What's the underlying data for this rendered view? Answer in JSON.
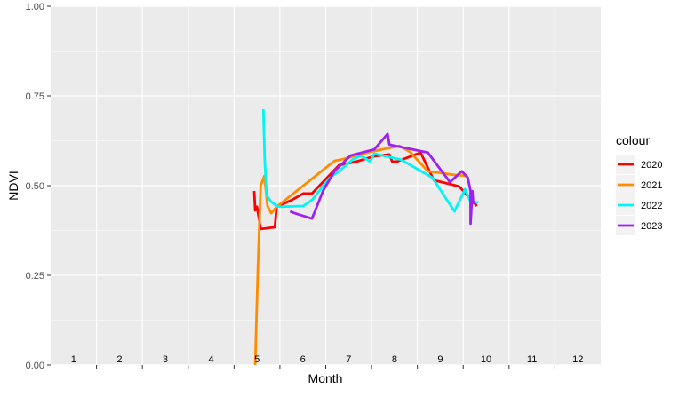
{
  "chart_data": {
    "type": "line",
    "title": "",
    "xlabel": "Month",
    "ylabel": "NDVI",
    "xlim": [
      0.5,
      12.5
    ],
    "ylim": [
      0,
      1
    ],
    "x_tick_labels": [
      "1",
      "2",
      "3",
      "4",
      "5",
      "6",
      "7",
      "8",
      "9",
      "10",
      "11",
      "12"
    ],
    "y_ticks": [
      0,
      0.25,
      0.5,
      0.75,
      1
    ],
    "y_tick_labels": [
      "0.00",
      "0.25",
      "0.50",
      "0.75",
      "1.00"
    ],
    "grid": true,
    "legend": {
      "title": "colour",
      "placement": "right"
    },
    "series": [
      {
        "name": "2020",
        "color": "#FF0000",
        "x": [
          4.94,
          4.96,
          5.0,
          5.08,
          5.39,
          5.43,
          5.76,
          6.01,
          6.2,
          6.79,
          7.17,
          7.56,
          7.89,
          7.95,
          8.05,
          8.57,
          8.86,
          9.41,
          9.8
        ],
        "y": [
          0.485,
          0.431,
          0.441,
          0.379,
          0.384,
          0.441,
          0.46,
          0.478,
          0.478,
          0.557,
          0.567,
          0.582,
          0.587,
          0.567,
          0.567,
          0.592,
          0.515,
          0.498,
          0.443
        ]
      },
      {
        "name": "2021",
        "color": "#FF8C00",
        "x": [
          4.96,
          5.02,
          5.08,
          5.16,
          5.23,
          5.31,
          5.43,
          6.69,
          6.88,
          7.47,
          8.11,
          8.34,
          8.73,
          9.31,
          9.6
        ],
        "y": [
          0.0,
          0.275,
          0.5,
          0.527,
          0.443,
          0.423,
          0.441,
          0.569,
          0.574,
          0.594,
          0.611,
          0.594,
          0.54,
          0.53,
          0.527
        ]
      },
      {
        "name": "2022",
        "color": "#00F5F5",
        "x": [
          5.14,
          5.17,
          5.21,
          5.31,
          5.43,
          5.52,
          6.01,
          6.2,
          6.59,
          6.79,
          7.08,
          7.27,
          7.47,
          7.56,
          8.15,
          8.83,
          9.31,
          9.54,
          9.66,
          9.83
        ],
        "y": [
          0.713,
          0.569,
          0.473,
          0.455,
          0.443,
          0.441,
          0.443,
          0.46,
          0.522,
          0.54,
          0.572,
          0.584,
          0.567,
          0.589,
          0.572,
          0.522,
          0.428,
          0.49,
          0.455,
          0.453
        ]
      },
      {
        "name": "2023",
        "color": "#A020F0",
        "x": [
          5.72,
          5.82,
          6.2,
          6.44,
          6.69,
          7.04,
          7.56,
          7.85,
          7.89,
          8.73,
          9.21,
          9.47,
          9.6,
          9.66,
          9.66,
          9.7,
          9.72
        ],
        "y": [
          0.428,
          0.423,
          0.408,
          0.485,
          0.54,
          0.584,
          0.601,
          0.644,
          0.614,
          0.592,
          0.51,
          0.54,
          0.522,
          0.485,
          0.394,
          0.485,
          0.448
        ]
      }
    ]
  }
}
